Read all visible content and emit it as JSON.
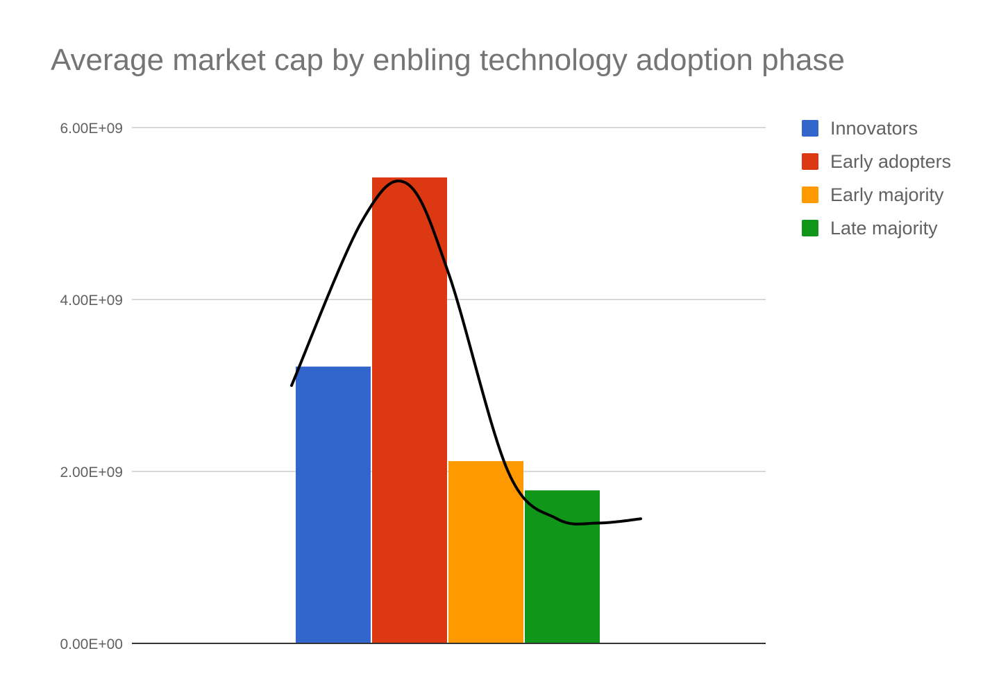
{
  "chart_data": {
    "type": "bar",
    "title": "Average market cap by enbling technology adoption phase",
    "xlabel": "",
    "ylabel": "",
    "ylim": [
      0,
      6000000000
    ],
    "yticks": [
      {
        "value": 0,
        "label": "0.00E+00"
      },
      {
        "value": 2000000000,
        "label": "2.00E+09"
      },
      {
        "value": 4000000000,
        "label": "4.00E+09"
      },
      {
        "value": 6000000000,
        "label": "6.00E+09"
      }
    ],
    "grid": true,
    "legend_position": "right",
    "series": [
      {
        "name": "Innovators",
        "values": [
          3220000000
        ],
        "color": "#3366cc"
      },
      {
        "name": "Early adopters",
        "values": [
          5420000000
        ],
        "color": "#dc3912"
      },
      {
        "name": "Early majority",
        "values": [
          2120000000
        ],
        "color": "#ff9900"
      },
      {
        "name": "Late majority",
        "values": [
          1780000000
        ],
        "color": "#109618"
      }
    ],
    "annotation_curve": {
      "description": "hand-drawn trend curve",
      "color": "#000000",
      "points": [
        [
          0.0,
          3000000000
        ],
        [
          0.2,
          4900000000
        ],
        [
          0.33,
          5350000000
        ],
        [
          0.45,
          4300000000
        ],
        [
          0.62,
          2000000000
        ],
        [
          0.76,
          1450000000
        ],
        [
          0.88,
          1400000000
        ],
        [
          1.0,
          1450000000
        ]
      ]
    }
  }
}
